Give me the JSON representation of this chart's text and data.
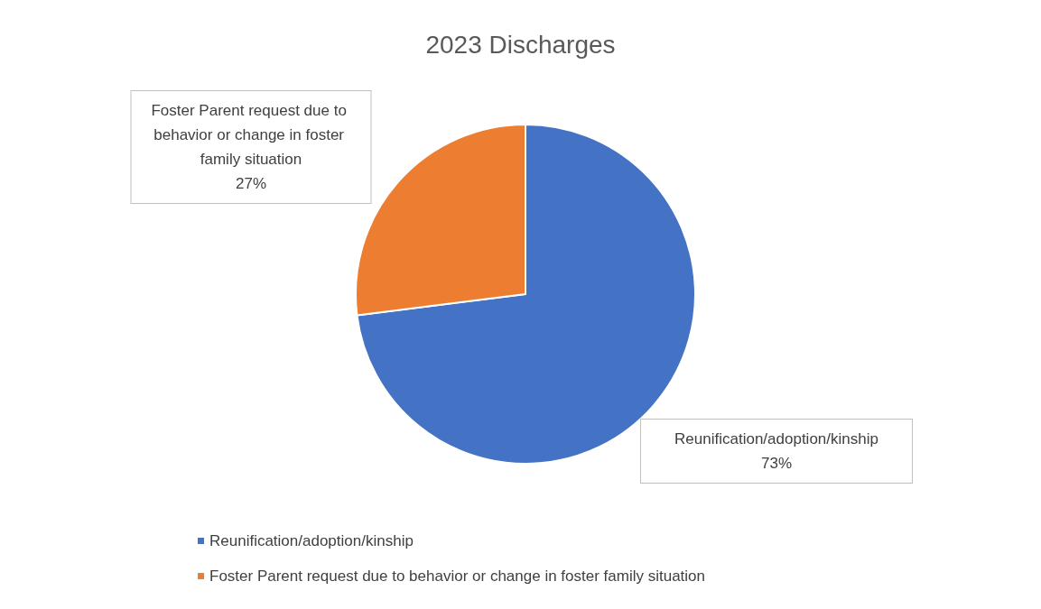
{
  "chart_data": {
    "type": "pie",
    "title": "2023 Discharges",
    "categories": [
      "Reunification/adoption/kinship",
      "Foster Parent request due to behavior or change in foster family situation"
    ],
    "values": [
      73,
      27
    ],
    "colors": [
      "#4472c4",
      "#ed7d31"
    ],
    "value_labels": [
      "73%",
      "27%"
    ],
    "legend": "bottom"
  }
}
